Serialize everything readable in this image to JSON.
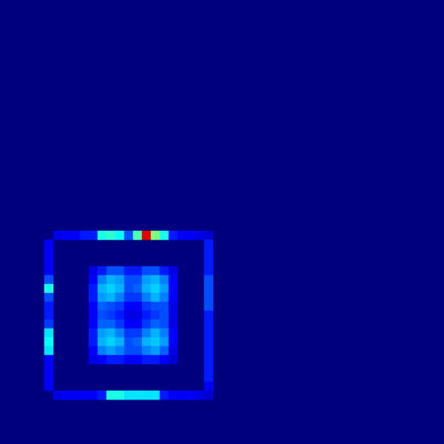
{
  "chart_data": {
    "type": "heatmap",
    "xlim": [
      0,
      50
    ],
    "ylim": [
      0,
      50
    ],
    "tick_labels": false,
    "grid": false,
    "value_range": [
      0,
      1
    ],
    "cells": [
      [
        6,
        26,
        0.1
      ],
      [
        7,
        26,
        0.12
      ],
      [
        8,
        26,
        0.12
      ],
      [
        9,
        26,
        0.15
      ],
      [
        10,
        26,
        0.15
      ],
      [
        11,
        26,
        0.4
      ],
      [
        12,
        26,
        0.42
      ],
      [
        13,
        26,
        0.38
      ],
      [
        14,
        26,
        0.2
      ],
      [
        15,
        26,
        0.45
      ],
      [
        16,
        26,
        0.9
      ],
      [
        17,
        26,
        0.5
      ],
      [
        18,
        26,
        0.4
      ],
      [
        19,
        26,
        0.15
      ],
      [
        20,
        26,
        0.12
      ],
      [
        21,
        26,
        0.12
      ],
      [
        22,
        26,
        0.1
      ],
      [
        23,
        26,
        0.08
      ],
      [
        5,
        27,
        0.12
      ],
      [
        5,
        28,
        0.12
      ],
      [
        5,
        29,
        0.12
      ],
      [
        5,
        30,
        0.12
      ],
      [
        5,
        31,
        0.2
      ],
      [
        5,
        32,
        0.4
      ],
      [
        5,
        33,
        0.2
      ],
      [
        5,
        34,
        0.15
      ],
      [
        5,
        35,
        0.15
      ],
      [
        5,
        36,
        0.18
      ],
      [
        5,
        37,
        0.35
      ],
      [
        5,
        38,
        0.38
      ],
      [
        5,
        39,
        0.35
      ],
      [
        5,
        40,
        0.12
      ],
      [
        5,
        41,
        0.12
      ],
      [
        5,
        42,
        0.12
      ],
      [
        5,
        43,
        0.12
      ],
      [
        23,
        27,
        0.15
      ],
      [
        23,
        28,
        0.15
      ],
      [
        23,
        29,
        0.15
      ],
      [
        23,
        30,
        0.15
      ],
      [
        23,
        31,
        0.2
      ],
      [
        23,
        32,
        0.2
      ],
      [
        23,
        33,
        0.2
      ],
      [
        23,
        34,
        0.2
      ],
      [
        23,
        35,
        0.15
      ],
      [
        23,
        36,
        0.15
      ],
      [
        23,
        37,
        0.15
      ],
      [
        23,
        38,
        0.15
      ],
      [
        23,
        39,
        0.15
      ],
      [
        23,
        40,
        0.15
      ],
      [
        23,
        41,
        0.15
      ],
      [
        23,
        42,
        0.15
      ],
      [
        23,
        43,
        0.12
      ],
      [
        6,
        44,
        0.1
      ],
      [
        7,
        44,
        0.12
      ],
      [
        8,
        44,
        0.12
      ],
      [
        9,
        44,
        0.12
      ],
      [
        10,
        44,
        0.12
      ],
      [
        11,
        44,
        0.15
      ],
      [
        12,
        44,
        0.4
      ],
      [
        13,
        44,
        0.4
      ],
      [
        14,
        44,
        0.35
      ],
      [
        15,
        44,
        0.35
      ],
      [
        16,
        44,
        0.35
      ],
      [
        17,
        44,
        0.35
      ],
      [
        18,
        44,
        0.15
      ],
      [
        19,
        44,
        0.12
      ],
      [
        20,
        44,
        0.12
      ],
      [
        21,
        44,
        0.12
      ],
      [
        22,
        44,
        0.1
      ],
      [
        23,
        44,
        0.08
      ],
      [
        10,
        30,
        0.1
      ],
      [
        11,
        30,
        0.15
      ],
      [
        12,
        30,
        0.2
      ],
      [
        13,
        30,
        0.2
      ],
      [
        14,
        30,
        0.15
      ],
      [
        15,
        30,
        0.15
      ],
      [
        16,
        30,
        0.2
      ],
      [
        17,
        30,
        0.2
      ],
      [
        18,
        30,
        0.15
      ],
      [
        19,
        30,
        0.1
      ],
      [
        10,
        31,
        0.12
      ],
      [
        11,
        31,
        0.25
      ],
      [
        12,
        31,
        0.3
      ],
      [
        13,
        31,
        0.28
      ],
      [
        14,
        31,
        0.2
      ],
      [
        15,
        31,
        0.2
      ],
      [
        16,
        31,
        0.28
      ],
      [
        17,
        31,
        0.3
      ],
      [
        18,
        31,
        0.25
      ],
      [
        19,
        31,
        0.12
      ],
      [
        10,
        32,
        0.15
      ],
      [
        11,
        32,
        0.3
      ],
      [
        12,
        32,
        0.33
      ],
      [
        13,
        32,
        0.3
      ],
      [
        14,
        32,
        0.2
      ],
      [
        15,
        32,
        0.22
      ],
      [
        16,
        32,
        0.3
      ],
      [
        17,
        32,
        0.33
      ],
      [
        18,
        32,
        0.28
      ],
      [
        19,
        32,
        0.12
      ],
      [
        10,
        33,
        0.15
      ],
      [
        11,
        33,
        0.28
      ],
      [
        12,
        33,
        0.3
      ],
      [
        13,
        33,
        0.25
      ],
      [
        14,
        33,
        0.18
      ],
      [
        15,
        33,
        0.18
      ],
      [
        16,
        33,
        0.25
      ],
      [
        17,
        33,
        0.3
      ],
      [
        18,
        33,
        0.25
      ],
      [
        19,
        33,
        0.12
      ],
      [
        10,
        34,
        0.12
      ],
      [
        11,
        34,
        0.22
      ],
      [
        12,
        34,
        0.2
      ],
      [
        13,
        34,
        0.18
      ],
      [
        14,
        34,
        0.12
      ],
      [
        15,
        34,
        0.12
      ],
      [
        16,
        34,
        0.18
      ],
      [
        17,
        34,
        0.2
      ],
      [
        18,
        34,
        0.2
      ],
      [
        19,
        34,
        0.1
      ],
      [
        10,
        35,
        0.12
      ],
      [
        11,
        35,
        0.2
      ],
      [
        12,
        35,
        0.18
      ],
      [
        13,
        35,
        0.15
      ],
      [
        14,
        35,
        0.1
      ],
      [
        15,
        35,
        0.1
      ],
      [
        16,
        35,
        0.15
      ],
      [
        17,
        35,
        0.18
      ],
      [
        18,
        35,
        0.2
      ],
      [
        19,
        35,
        0.1
      ],
      [
        10,
        36,
        0.12
      ],
      [
        11,
        36,
        0.22
      ],
      [
        12,
        36,
        0.22
      ],
      [
        13,
        36,
        0.18
      ],
      [
        14,
        36,
        0.12
      ],
      [
        15,
        36,
        0.12
      ],
      [
        16,
        36,
        0.18
      ],
      [
        17,
        36,
        0.22
      ],
      [
        18,
        36,
        0.2
      ],
      [
        19,
        36,
        0.1
      ],
      [
        10,
        37,
        0.15
      ],
      [
        11,
        37,
        0.28
      ],
      [
        12,
        37,
        0.3
      ],
      [
        13,
        37,
        0.25
      ],
      [
        14,
        37,
        0.18
      ],
      [
        15,
        37,
        0.18
      ],
      [
        16,
        37,
        0.25
      ],
      [
        17,
        37,
        0.3
      ],
      [
        18,
        37,
        0.25
      ],
      [
        19,
        37,
        0.12
      ],
      [
        10,
        38,
        0.15
      ],
      [
        11,
        38,
        0.3
      ],
      [
        12,
        38,
        0.33
      ],
      [
        13,
        38,
        0.3
      ],
      [
        14,
        38,
        0.2
      ],
      [
        15,
        38,
        0.22
      ],
      [
        16,
        38,
        0.3
      ],
      [
        17,
        38,
        0.32
      ],
      [
        18,
        38,
        0.28
      ],
      [
        19,
        38,
        0.12
      ],
      [
        10,
        39,
        0.12
      ],
      [
        11,
        39,
        0.25
      ],
      [
        12,
        39,
        0.28
      ],
      [
        13,
        39,
        0.25
      ],
      [
        14,
        39,
        0.2
      ],
      [
        15,
        39,
        0.2
      ],
      [
        16,
        39,
        0.25
      ],
      [
        17,
        39,
        0.28
      ],
      [
        18,
        39,
        0.22
      ],
      [
        19,
        39,
        0.1
      ],
      [
        10,
        40,
        0.1
      ],
      [
        11,
        40,
        0.12
      ],
      [
        12,
        40,
        0.15
      ],
      [
        13,
        40,
        0.15
      ],
      [
        14,
        40,
        0.12
      ],
      [
        15,
        40,
        0.12
      ],
      [
        16,
        40,
        0.15
      ],
      [
        17,
        40,
        0.15
      ],
      [
        18,
        40,
        0.12
      ],
      [
        19,
        40,
        0.08
      ]
    ]
  }
}
